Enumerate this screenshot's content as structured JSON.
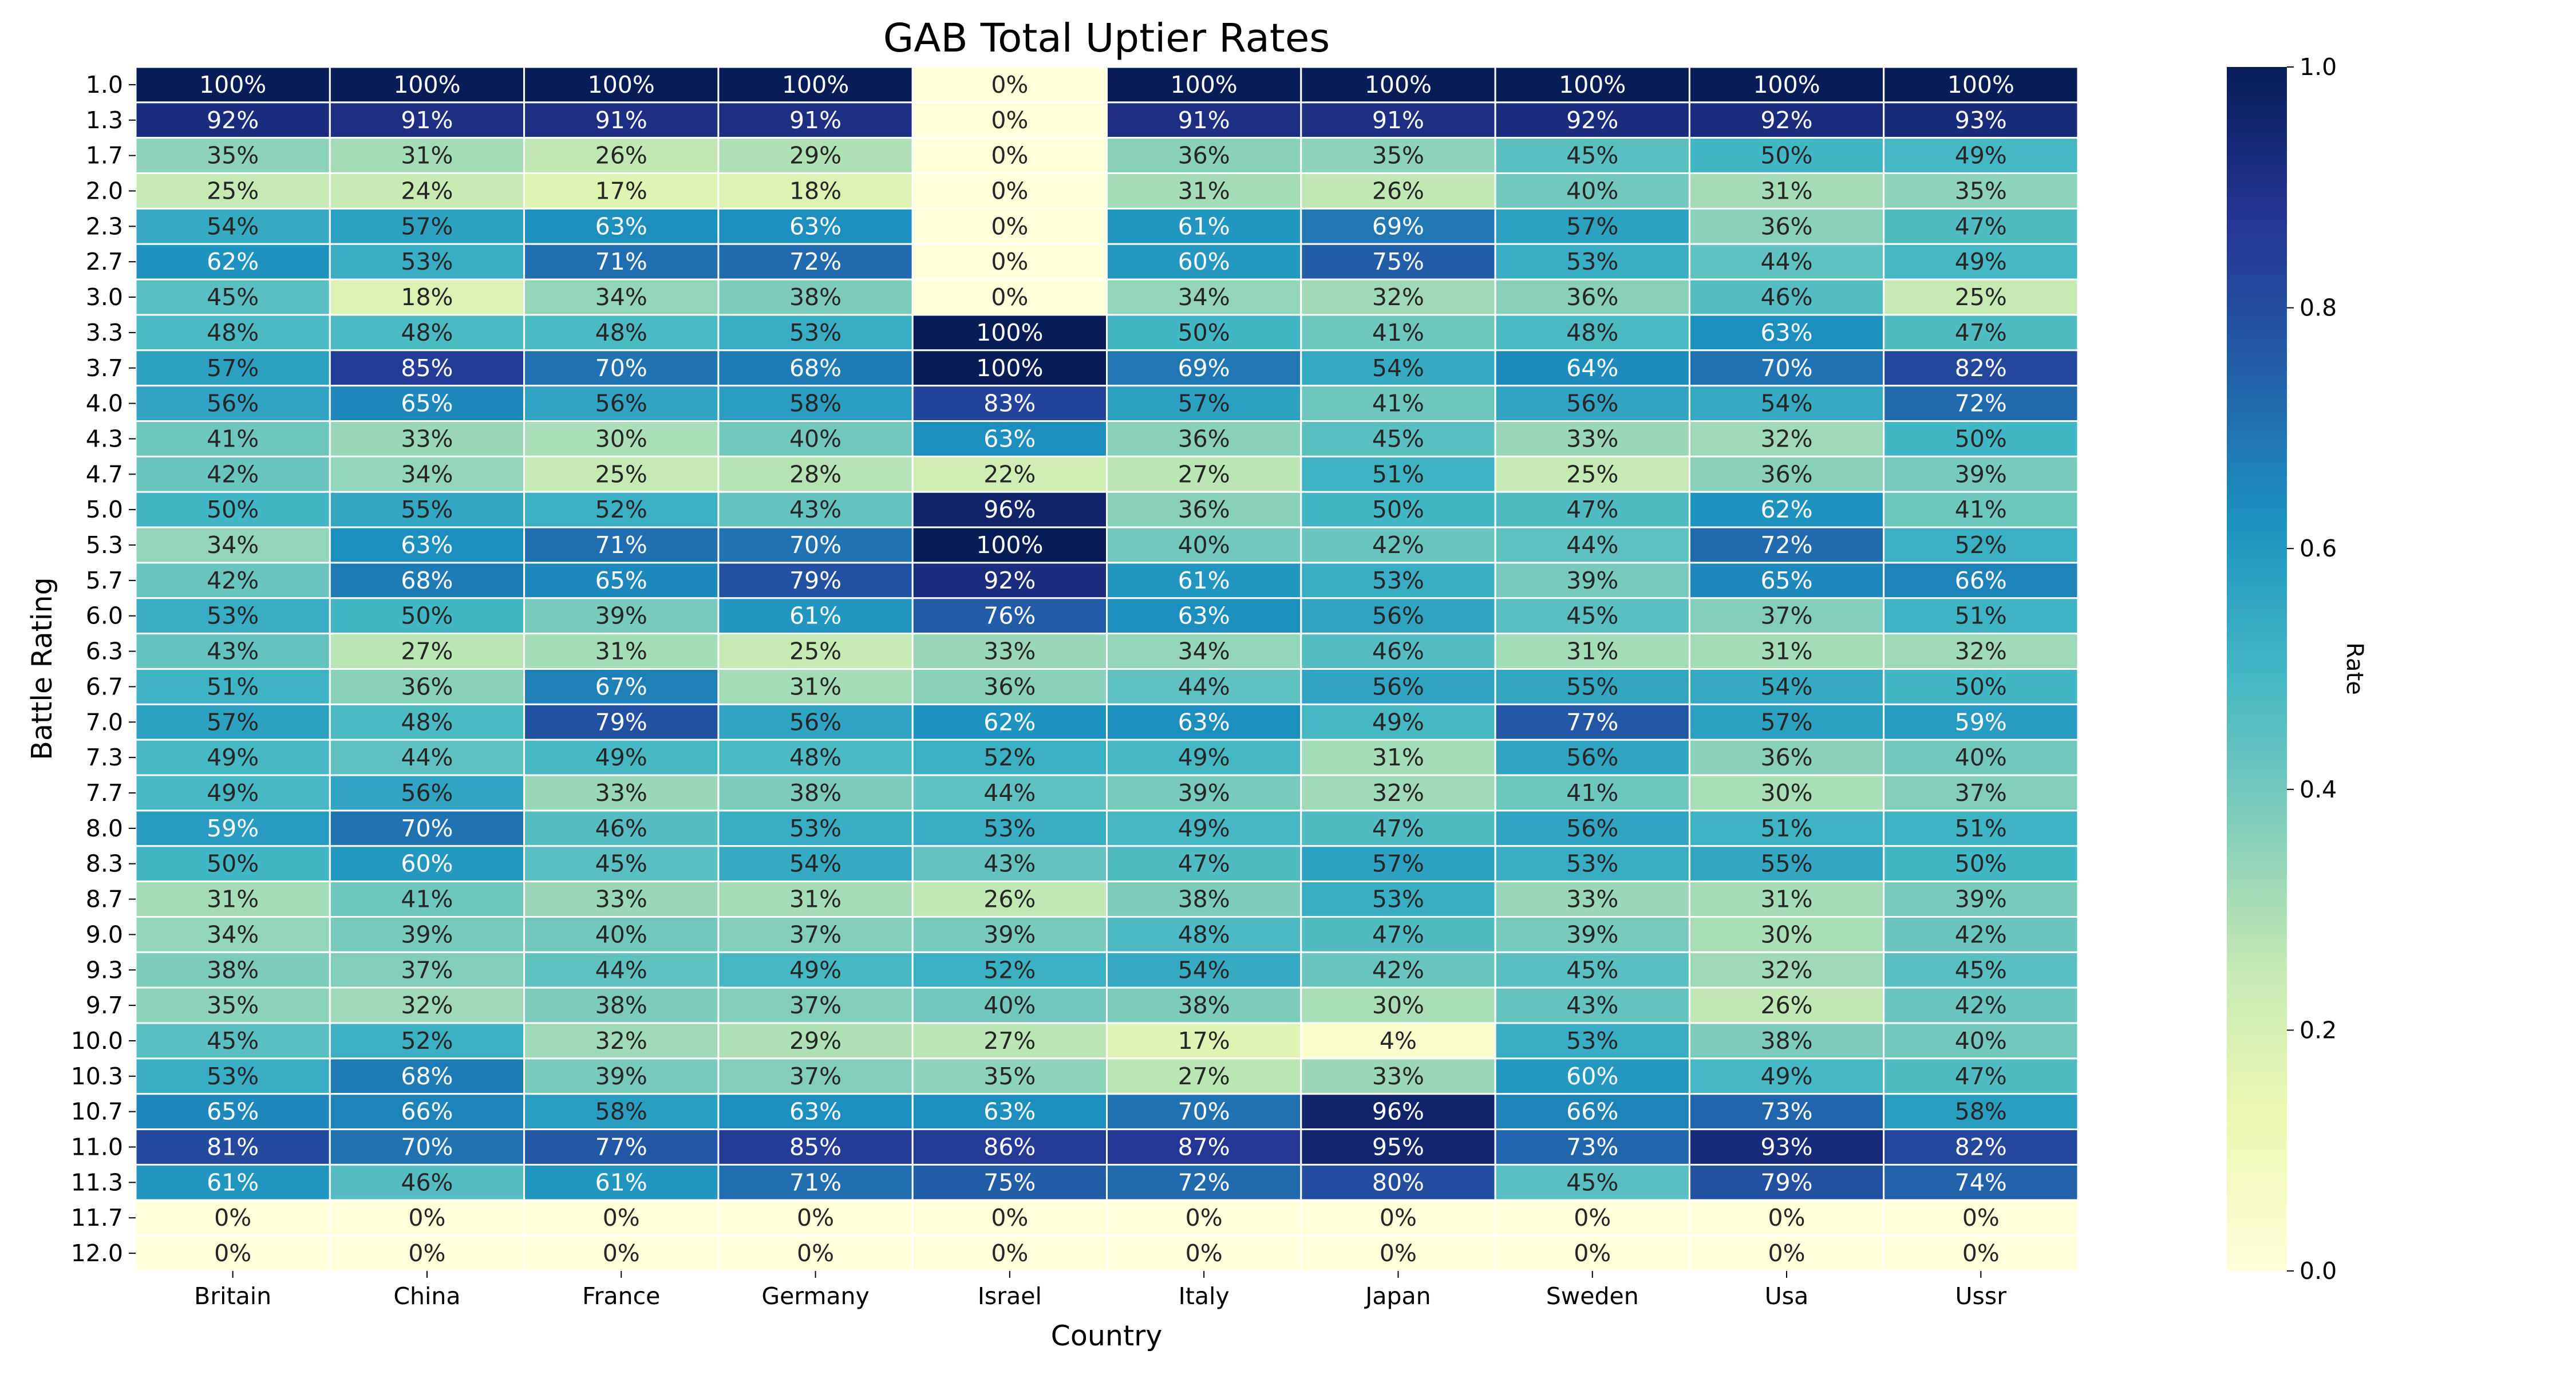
{
  "chart_data": {
    "type": "heatmap",
    "title": "GAB Total Uptier Rates",
    "xlabel": "Country",
    "ylabel": "Battle Rating",
    "colorbar_label": "Rate",
    "colormap": "YlGnBu",
    "vmin": 0,
    "vmax": 1,
    "colorbar_ticks": [
      "0.0",
      "0.2",
      "0.4",
      "0.6",
      "0.8",
      "1.0"
    ],
    "x": [
      "Britain",
      "China",
      "France",
      "Germany",
      "Israel",
      "Italy",
      "Japan",
      "Sweden",
      "Usa",
      "Ussr"
    ],
    "y": [
      "1.0",
      "1.3",
      "1.7",
      "2.0",
      "2.3",
      "2.7",
      "3.0",
      "3.3",
      "3.7",
      "4.0",
      "4.3",
      "4.7",
      "5.0",
      "5.3",
      "5.7",
      "6.0",
      "6.3",
      "6.7",
      "7.0",
      "7.3",
      "7.7",
      "8.0",
      "8.3",
      "8.7",
      "9.0",
      "9.3",
      "9.7",
      "10.0",
      "10.3",
      "10.7",
      "11.0",
      "11.3",
      "11.7",
      "12.0"
    ],
    "values": [
      [
        100,
        100,
        100,
        100,
        0,
        100,
        100,
        100,
        100,
        100
      ],
      [
        92,
        91,
        91,
        91,
        0,
        91,
        91,
        92,
        92,
        93
      ],
      [
        35,
        31,
        26,
        29,
        0,
        36,
        35,
        45,
        50,
        49
      ],
      [
        25,
        24,
        17,
        18,
        0,
        31,
        26,
        40,
        31,
        35
      ],
      [
        54,
        57,
        63,
        63,
        0,
        61,
        69,
        57,
        36,
        47
      ],
      [
        62,
        53,
        71,
        72,
        0,
        60,
        75,
        53,
        44,
        49
      ],
      [
        45,
        18,
        34,
        38,
        0,
        34,
        32,
        36,
        46,
        25
      ],
      [
        48,
        48,
        48,
        53,
        100,
        50,
        41,
        48,
        63,
        47
      ],
      [
        57,
        85,
        70,
        68,
        100,
        69,
        54,
        64,
        70,
        82
      ],
      [
        56,
        65,
        56,
        58,
        83,
        57,
        41,
        56,
        54,
        72
      ],
      [
        41,
        33,
        30,
        40,
        63,
        36,
        45,
        33,
        32,
        50
      ],
      [
        42,
        34,
        25,
        28,
        22,
        27,
        51,
        25,
        36,
        39
      ],
      [
        50,
        55,
        52,
        43,
        96,
        36,
        50,
        47,
        62,
        41
      ],
      [
        34,
        63,
        71,
        70,
        100,
        40,
        42,
        44,
        72,
        52
      ],
      [
        42,
        68,
        65,
        79,
        92,
        61,
        53,
        39,
        65,
        66
      ],
      [
        53,
        50,
        39,
        61,
        76,
        63,
        56,
        45,
        37,
        51
      ],
      [
        43,
        27,
        31,
        25,
        33,
        34,
        46,
        31,
        31,
        32
      ],
      [
        51,
        36,
        67,
        31,
        36,
        44,
        56,
        55,
        54,
        50
      ],
      [
        57,
        48,
        79,
        56,
        62,
        63,
        49,
        77,
        57,
        59
      ],
      [
        49,
        44,
        49,
        48,
        52,
        49,
        31,
        56,
        36,
        40
      ],
      [
        49,
        56,
        33,
        38,
        44,
        39,
        32,
        41,
        30,
        37
      ],
      [
        59,
        70,
        46,
        53,
        53,
        49,
        47,
        56,
        51,
        51
      ],
      [
        50,
        60,
        45,
        54,
        43,
        47,
        57,
        53,
        55,
        50
      ],
      [
        31,
        41,
        33,
        31,
        26,
        38,
        53,
        33,
        31,
        39
      ],
      [
        34,
        39,
        40,
        37,
        39,
        48,
        47,
        39,
        30,
        42
      ],
      [
        38,
        37,
        44,
        49,
        52,
        54,
        42,
        45,
        32,
        45
      ],
      [
        35,
        32,
        38,
        37,
        40,
        38,
        30,
        43,
        26,
        42
      ],
      [
        45,
        52,
        32,
        29,
        27,
        17,
        4,
        53,
        38,
        40
      ],
      [
        53,
        68,
        39,
        37,
        35,
        27,
        33,
        60,
        49,
        47
      ],
      [
        65,
        66,
        58,
        63,
        63,
        70,
        96,
        66,
        73,
        58
      ],
      [
        81,
        70,
        77,
        85,
        86,
        87,
        95,
        73,
        93,
        82
      ],
      [
        61,
        46,
        61,
        71,
        75,
        72,
        80,
        45,
        79,
        74
      ],
      [
        0,
        0,
        0,
        0,
        0,
        0,
        0,
        0,
        0,
        0
      ],
      [
        0,
        0,
        0,
        0,
        0,
        0,
        0,
        0,
        0,
        0
      ]
    ],
    "value_format": "percent"
  }
}
